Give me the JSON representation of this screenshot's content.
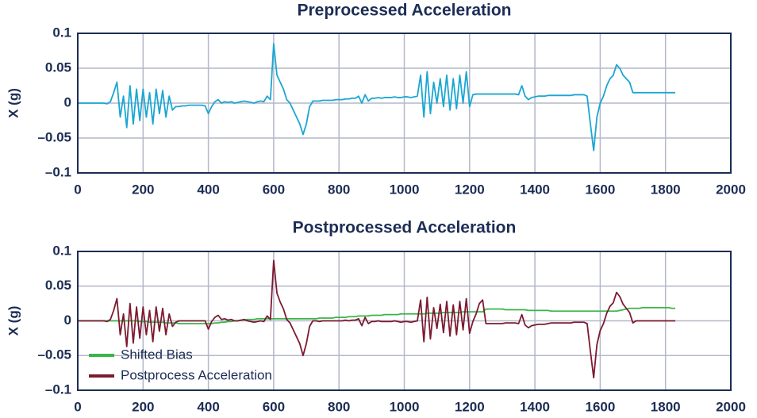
{
  "chart_data": [
    {
      "type": "line",
      "title": "Preprocessed Acceleration",
      "y_label": "X (g)",
      "x": [
        0,
        10,
        20,
        30,
        40,
        50,
        60,
        70,
        80,
        90,
        100,
        110,
        120,
        130,
        140,
        150,
        160,
        170,
        180,
        190,
        200,
        210,
        220,
        230,
        240,
        250,
        260,
        270,
        280,
        290,
        300,
        310,
        320,
        330,
        340,
        350,
        360,
        370,
        380,
        390,
        400,
        410,
        420,
        430,
        440,
        450,
        460,
        470,
        480,
        490,
        500,
        510,
        520,
        530,
        540,
        550,
        560,
        570,
        580,
        590,
        600,
        610,
        620,
        630,
        640,
        650,
        660,
        670,
        680,
        690,
        700,
        710,
        720,
        730,
        740,
        750,
        760,
        770,
        780,
        790,
        800,
        810,
        820,
        830,
        840,
        850,
        860,
        870,
        880,
        890,
        900,
        910,
        920,
        930,
        940,
        950,
        960,
        970,
        980,
        990,
        1000,
        1010,
        1020,
        1030,
        1040,
        1050,
        1060,
        1070,
        1080,
        1090,
        1100,
        1110,
        1120,
        1130,
        1140,
        1150,
        1160,
        1170,
        1180,
        1190,
        1200,
        1210,
        1220,
        1230,
        1240,
        1250,
        1260,
        1270,
        1280,
        1290,
        1300,
        1310,
        1320,
        1330,
        1340,
        1350,
        1360,
        1370,
        1380,
        1390,
        1400,
        1410,
        1420,
        1430,
        1440,
        1450,
        1460,
        1470,
        1480,
        1490,
        1500,
        1510,
        1520,
        1530,
        1540,
        1550,
        1560,
        1570,
        1580,
        1590,
        1600,
        1610,
        1620,
        1630,
        1640,
        1650,
        1660,
        1670,
        1680,
        1690,
        1700,
        1710,
        1720,
        1730,
        1740,
        1750,
        1760,
        1770,
        1780,
        1790,
        1800,
        1810,
        1820,
        1830
      ],
      "values": [
        0,
        0,
        0,
        0,
        0,
        0,
        0,
        0,
        0,
        -0.001,
        0.002,
        0.015,
        0.03,
        -0.02,
        0.01,
        -0.035,
        0.025,
        -0.03,
        0.02,
        -0.025,
        0.02,
        -0.02,
        0.015,
        -0.03,
        0.02,
        -0.015,
        0.018,
        -0.02,
        0.01,
        -0.01,
        -0.005,
        -0.005,
        -0.004,
        -0.004,
        -0.003,
        -0.003,
        -0.003,
        -0.003,
        -0.003,
        -0.004,
        -0.015,
        -0.005,
        0.002,
        0.005,
        0,
        0.002,
        0.001,
        0.002,
        0,
        0.001,
        0.002,
        0.003,
        0.002,
        0.001,
        0,
        0.002,
        0.003,
        0.002,
        0.01,
        0.005,
        0.085,
        0.04,
        0.03,
        0.02,
        0.005,
        0,
        -0.01,
        -0.02,
        -0.03,
        -0.045,
        -0.03,
        -0.005,
        0.003,
        0.003,
        0.003,
        0.004,
        0.004,
        0.004,
        0.004,
        0.005,
        0.005,
        0.005,
        0.006,
        0.006,
        0.007,
        0.007,
        0.01,
        0,
        0.012,
        0.003,
        0.007,
        0.007,
        0.008,
        0.007,
        0.008,
        0.008,
        0.008,
        0.009,
        0.008,
        0.008,
        0.009,
        0.009,
        0.008,
        0.009,
        0.01,
        0.04,
        -0.02,
        0.045,
        -0.015,
        0.03,
        0,
        0.035,
        -0.005,
        0.04,
        -0.01,
        0.035,
        -0.008,
        0.04,
        0,
        0.045,
        -0.005,
        0.012,
        0.013,
        0.013,
        0.013,
        0.013,
        0.013,
        0.013,
        0.013,
        0.013,
        0.013,
        0.013,
        0.013,
        0.013,
        0.013,
        0.012,
        0.025,
        0.01,
        0.005,
        0.008,
        0.009,
        0.01,
        0.01,
        0.01,
        0.011,
        0.011,
        0.011,
        0.011,
        0.011,
        0.011,
        0.011,
        0.011,
        0.012,
        0.012,
        0.012,
        0.012,
        0.01,
        -0.03,
        -0.068,
        -0.02,
        0,
        0.01,
        0.025,
        0.035,
        0.04,
        0.055,
        0.05,
        0.04,
        0.035,
        0.03,
        0.015,
        0.015,
        0.015,
        0.015,
        0.015,
        0.015,
        0.015,
        0.015,
        0.015,
        0.015,
        0.015,
        0.015,
        0.015,
        0.015
      ],
      "color": "#1ba6d2",
      "xlim": [
        0,
        2000
      ],
      "xticks": [
        0,
        200,
        400,
        600,
        800,
        1000,
        1200,
        1400,
        1600,
        1800,
        2000
      ],
      "ylim": [
        -0.1,
        0.1
      ],
      "yticks": [
        {
          "value": -0.1,
          "label": "–0.1"
        },
        {
          "value": -0.05,
          "label": "–0.05"
        },
        0,
        0.05,
        0.1
      ],
      "grid": true
    },
    {
      "type": "line",
      "title": "Postprocessed Acceleration",
      "y_label": "X (g)",
      "x": [
        0,
        10,
        20,
        30,
        40,
        50,
        60,
        70,
        80,
        90,
        100,
        110,
        120,
        130,
        140,
        150,
        160,
        170,
        180,
        190,
        200,
        210,
        220,
        230,
        240,
        250,
        260,
        270,
        280,
        290,
        300,
        310,
        320,
        330,
        340,
        350,
        360,
        370,
        380,
        390,
        400,
        410,
        420,
        430,
        440,
        450,
        460,
        470,
        480,
        490,
        500,
        510,
        520,
        530,
        540,
        550,
        560,
        570,
        580,
        590,
        600,
        610,
        620,
        630,
        640,
        650,
        660,
        670,
        680,
        690,
        700,
        710,
        720,
        730,
        740,
        750,
        760,
        770,
        780,
        790,
        800,
        810,
        820,
        830,
        840,
        850,
        860,
        870,
        880,
        890,
        900,
        910,
        920,
        930,
        940,
        950,
        960,
        970,
        980,
        990,
        1000,
        1010,
        1020,
        1030,
        1040,
        1050,
        1060,
        1070,
        1080,
        1090,
        1100,
        1110,
        1120,
        1130,
        1140,
        1150,
        1160,
        1170,
        1180,
        1190,
        1200,
        1210,
        1220,
        1230,
        1240,
        1250,
        1260,
        1270,
        1280,
        1290,
        1300,
        1310,
        1320,
        1330,
        1340,
        1350,
        1360,
        1370,
        1380,
        1390,
        1400,
        1410,
        1420,
        1430,
        1440,
        1450,
        1460,
        1470,
        1480,
        1490,
        1500,
        1510,
        1520,
        1530,
        1540,
        1550,
        1560,
        1570,
        1580,
        1590,
        1600,
        1610,
        1620,
        1630,
        1640,
        1650,
        1660,
        1670,
        1680,
        1690,
        1700,
        1710,
        1720,
        1730,
        1740,
        1750,
        1760,
        1770,
        1780,
        1790,
        1800,
        1810,
        1820,
        1830
      ],
      "series": [
        {
          "name": "Shifted Bias",
          "color": "#3cb44b",
          "values": [
            0,
            0,
            0,
            0,
            0,
            0,
            0,
            0,
            0,
            0,
            0,
            0,
            0,
            0,
            0,
            0,
            0,
            0,
            0,
            -0.001,
            -0.001,
            -0.001,
            -0.002,
            -0.002,
            -0.002,
            -0.002,
            -0.002,
            -0.003,
            -0.003,
            -0.003,
            -0.003,
            -0.004,
            -0.004,
            -0.004,
            -0.004,
            -0.004,
            -0.004,
            -0.004,
            -0.004,
            -0.004,
            -0.004,
            -0.004,
            -0.003,
            -0.003,
            -0.002,
            -0.002,
            -0.001,
            -0.001,
            0,
            0,
            0.001,
            0.001,
            0.002,
            0.002,
            0.002,
            0.003,
            0.003,
            0.003,
            0.003,
            0.003,
            0.003,
            0.003,
            0.003,
            0.003,
            0.003,
            0.003,
            0.003,
            0.003,
            0.003,
            0.003,
            0.003,
            0.003,
            0.003,
            0.003,
            0.004,
            0.004,
            0.004,
            0.004,
            0.004,
            0.005,
            0.005,
            0.005,
            0.005,
            0.006,
            0.006,
            0.006,
            0.007,
            0.007,
            0.007,
            0.007,
            0.008,
            0.008,
            0.008,
            0.008,
            0.009,
            0.009,
            0.009,
            0.009,
            0.009,
            0.01,
            0.01,
            0.01,
            0.01,
            0.01,
            0.01,
            0.01,
            0.01,
            0.011,
            0.011,
            0.011,
            0.011,
            0.011,
            0.012,
            0.012,
            0.012,
            0.012,
            0.012,
            0.012,
            0.013,
            0.013,
            0.013,
            0.013,
            0.013,
            0.013,
            0.013,
            0.017,
            0.017,
            0.017,
            0.017,
            0.017,
            0.017,
            0.016,
            0.016,
            0.016,
            0.016,
            0.016,
            0.016,
            0.016,
            0.015,
            0.015,
            0.015,
            0.015,
            0.015,
            0.015,
            0.015,
            0.014,
            0.014,
            0.014,
            0.014,
            0.014,
            0.014,
            0.014,
            0.014,
            0.014,
            0.014,
            0.014,
            0.014,
            0.014,
            0.014,
            0.014,
            0.014,
            0.014,
            0.014,
            0.014,
            0.014,
            0.014,
            0.015,
            0.016,
            0.017,
            0.018,
            0.018,
            0.018,
            0.018,
            0.019,
            0.019,
            0.019,
            0.019,
            0.019,
            0.019,
            0.019,
            0.019,
            0.019,
            0.018,
            0.018
          ]
        },
        {
          "name": "Postprocess Acceleration",
          "color": "#7c1a30",
          "values": [
            0,
            0,
            0,
            0,
            0,
            0,
            0,
            0,
            0,
            -0.001,
            0.002,
            0.015,
            0.032,
            -0.02,
            0.01,
            -0.037,
            0.025,
            -0.032,
            0.02,
            -0.025,
            0.02,
            -0.02,
            0.015,
            -0.03,
            0.02,
            -0.015,
            0.018,
            -0.02,
            0.01,
            -0.008,
            -0.002,
            0,
            0,
            0,
            0,
            0,
            0,
            0,
            0,
            0,
            -0.012,
            -0.001,
            0.005,
            0.008,
            0.002,
            0.003,
            0.001,
            0.002,
            0,
            0,
            0.001,
            0.002,
            0,
            -0.001,
            -0.002,
            -0.001,
            0,
            -0.001,
            0.007,
            0.002,
            0.087,
            0.04,
            0.027,
            0.017,
            0.002,
            -0.003,
            -0.013,
            -0.023,
            -0.033,
            -0.05,
            -0.033,
            -0.008,
            0,
            0,
            -0.001,
            0,
            0,
            0,
            0,
            0,
            0,
            0,
            0.001,
            0,
            0.001,
            0.001,
            0.003,
            -0.007,
            0.005,
            -0.004,
            -0.001,
            -0.001,
            0,
            -0.001,
            -0.001,
            -0.001,
            -0.001,
            0,
            -0.001,
            -0.002,
            -0.001,
            -0.001,
            -0.002,
            -0.001,
            0,
            0.03,
            -0.03,
            0.034,
            -0.026,
            0.019,
            -0.011,
            0.024,
            -0.017,
            0.028,
            -0.022,
            0.023,
            -0.02,
            0.028,
            -0.013,
            0.032,
            -0.018,
            -0.001,
            0.01,
            0.025,
            0.03,
            -0.004,
            -0.004,
            -0.004,
            -0.004,
            -0.004,
            -0.004,
            -0.003,
            -0.003,
            -0.003,
            -0.003,
            -0.004,
            0.009,
            -0.006,
            -0.01,
            -0.007,
            -0.006,
            -0.005,
            -0.005,
            -0.005,
            -0.004,
            -0.003,
            -0.003,
            -0.003,
            -0.003,
            -0.003,
            -0.003,
            -0.003,
            -0.002,
            -0.002,
            -0.002,
            -0.002,
            -0.004,
            -0.044,
            -0.082,
            -0.034,
            -0.014,
            -0.004,
            0.011,
            0.021,
            0.026,
            0.041,
            0.035,
            0.024,
            0.018,
            0.012,
            -0.003,
            0,
            0,
            0,
            0,
            0,
            0,
            0,
            0,
            0,
            0,
            0,
            0,
            0
          ]
        }
      ],
      "legend": "lower left",
      "xlim": [
        0,
        2000
      ],
      "xticks": [
        0,
        200,
        400,
        600,
        800,
        1000,
        1200,
        1400,
        1600,
        1800,
        2000
      ],
      "ylim": [
        -0.1,
        0.1
      ],
      "yticks": [
        {
          "value": -0.1,
          "label": "–0.1"
        },
        {
          "value": -0.05,
          "label": "–0.05"
        },
        0,
        0.05,
        0.1
      ],
      "grid": true
    }
  ]
}
